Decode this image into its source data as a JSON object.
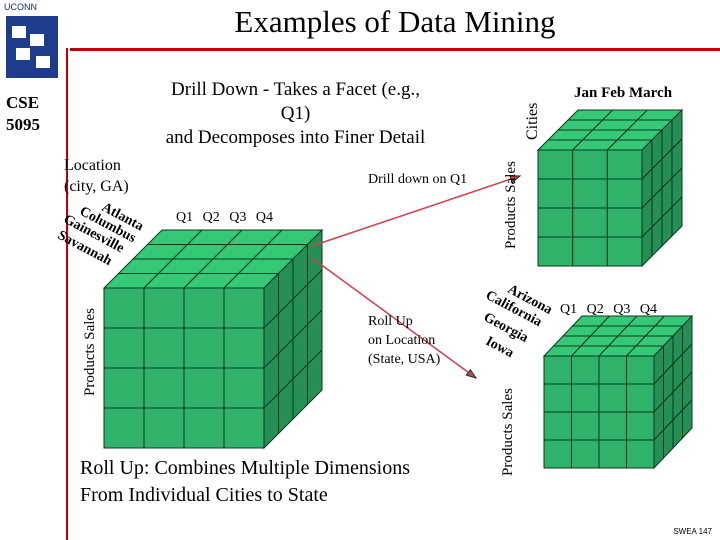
{
  "sidebar": {
    "logo_text": "UCONN",
    "course": "CSE",
    "course_number": "5095"
  },
  "title": "Examples of Data Mining",
  "subtitle_lines": [
    "Drill Down - Takes a Facet (e.g.,",
    "Q1)",
    "and Decomposes into Finer Detail"
  ],
  "base_cube": {
    "location_label": "Location",
    "location_sub": "(city, GA)",
    "cities": [
      "Atlanta",
      "Columbus",
      "Gainesville",
      "Savannah"
    ],
    "quarters": "Q1  Q2  Q3  Q4",
    "y_axis": "Products Sales"
  },
  "drill_cube": {
    "months": "Jan Feb March",
    "z_axis": "Cities",
    "y_axis": "Products Sales",
    "note": "Drill down on Q1"
  },
  "rollup_cube": {
    "states": [
      "Arizona",
      "California",
      "Georgia",
      "Iowa"
    ],
    "quarters": "Q1  Q2  Q3  Q4",
    "y_axis": "Products Sales",
    "note_lines": [
      "Roll Up",
      "on Location",
      "(State, USA)"
    ]
  },
  "caption_lines": [
    "Roll Up: Combines Multiple Dimensions",
    "From Individual Cities to State"
  ],
  "footer": "SWEA 147",
  "colors": {
    "cube_face": "#2fb36a",
    "cube_line": "#0a3a1f",
    "accent_red": "#c00000",
    "arrow": "#d04050"
  }
}
